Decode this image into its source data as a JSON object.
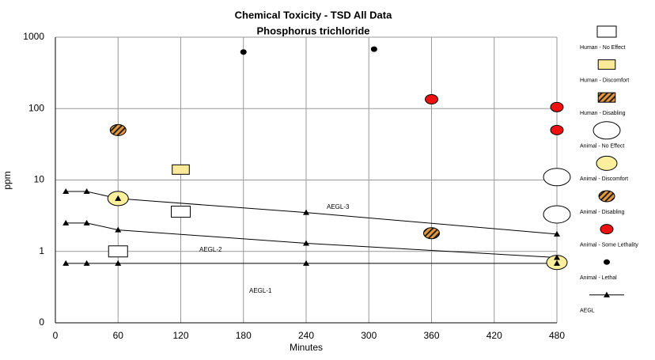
{
  "chart_data": {
    "type": "scatter",
    "title": "Chemical Toxicity - TSD All Data",
    "subtitle": "Phosphorus trichloride",
    "x_label": "Minutes",
    "y_label": "ppm",
    "log_y": true,
    "grid": true,
    "legend": "right",
    "xlim": [
      0,
      480
    ],
    "xticks": [
      0,
      60,
      120,
      180,
      240,
      300,
      360,
      420,
      480
    ],
    "ylim": [
      0.1,
      1000
    ],
    "yticks": [
      {
        "value": 0.1,
        "label": "0"
      },
      1,
      10,
      100,
      1000
    ],
    "series": [
      {
        "name": "Human - No Effect",
        "color": "#ffffff",
        "marker": "square",
        "x": [
          60,
          120
        ],
        "values": [
          1.0,
          3.6
        ]
      },
      {
        "name": "Human - Discomfort",
        "color": "#fbe99a",
        "marker": "square",
        "x": [
          120
        ],
        "values": [
          14
        ]
      },
      {
        "name": "Human - Disabling",
        "color": "#e8963c",
        "marker": "square",
        "pattern": "striped",
        "x": [],
        "values": []
      },
      {
        "name": "Animal - No Effect",
        "color": "#ffffff",
        "marker": "circle",
        "x": [
          480,
          480
        ],
        "values": [
          11,
          3.3
        ]
      },
      {
        "name": "Animal - Discomfort",
        "color": "#fbef9e",
        "marker": "circle",
        "x": [
          60,
          480
        ],
        "values": [
          5.5,
          0.7
        ]
      },
      {
        "name": "Animal - Disabling",
        "color": "#e8963c",
        "marker": "circle",
        "pattern": "striped",
        "x": [
          60,
          360
        ],
        "values": [
          50,
          1.8
        ]
      },
      {
        "name": "Animal - Some Lethality",
        "color": "#ee1111",
        "marker": "circle",
        "x": [
          360,
          480,
          480
        ],
        "values": [
          135,
          105,
          50
        ]
      },
      {
        "name": "Animal - Lethal",
        "color": "#000000",
        "marker": "dot",
        "x": [
          180,
          305
        ],
        "values": [
          620,
          680
        ]
      },
      {
        "name": "AEGL",
        "color": "#000000",
        "marker": "triangle-line",
        "lines": [
          {
            "name": "AEGL-3",
            "x": [
              10,
              30,
              60,
              240,
              480
            ],
            "values": [
              6.9,
              6.9,
              5.5,
              3.5,
              1.75
            ]
          },
          {
            "name": "AEGL-2",
            "x": [
              10,
              30,
              60,
              240,
              480
            ],
            "values": [
              2.5,
              2.5,
              2.0,
              1.3,
              0.82
            ]
          },
          {
            "name": "AEGL-1",
            "x": [
              10,
              30,
              60,
              240,
              480
            ],
            "values": [
              0.68,
              0.68,
              0.68,
              0.68,
              0.68
            ]
          }
        ]
      }
    ]
  }
}
